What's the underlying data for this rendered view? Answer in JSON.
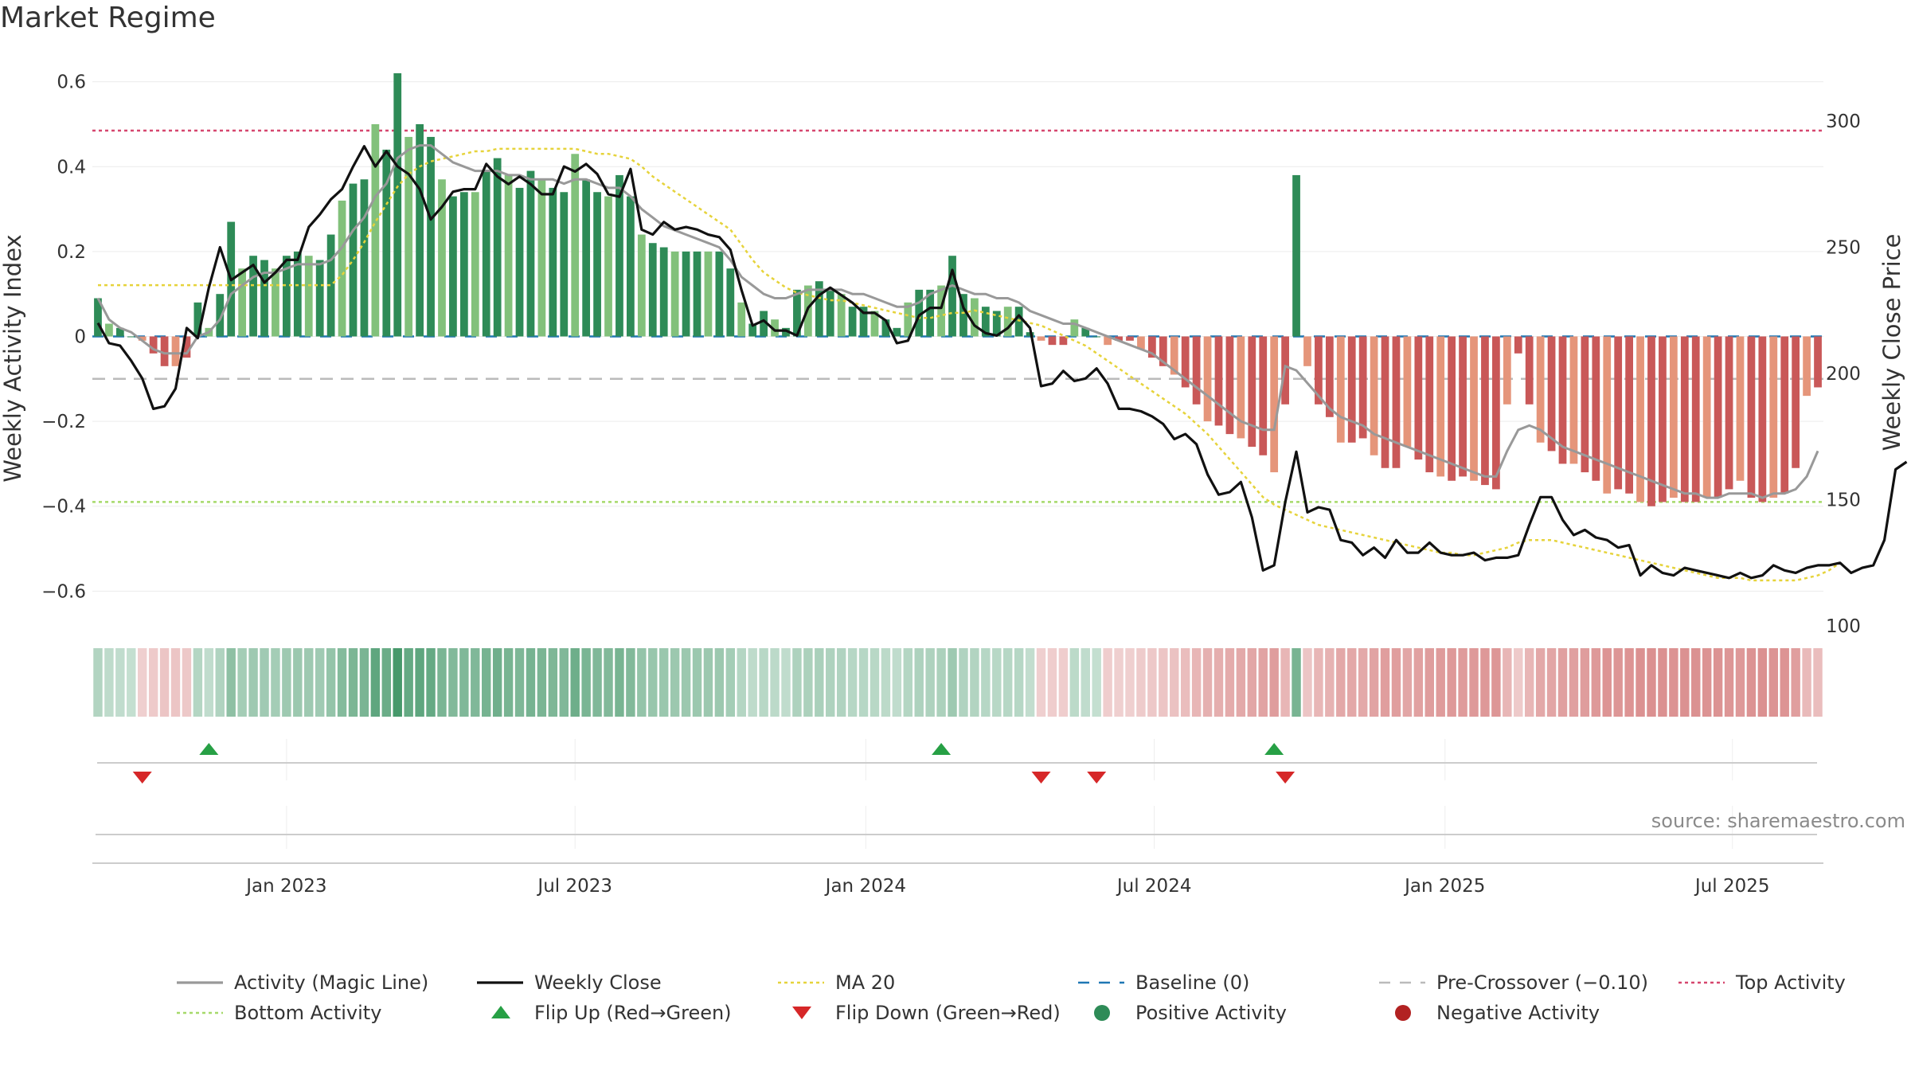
{
  "page": {
    "title": "Market Regime"
  },
  "source_text": "source: sharemaestro.com",
  "colors": {
    "strong_green": "#2e8b57",
    "light_green": "#82c17b",
    "strong_red": "#c95858",
    "light_red": "#e5957a",
    "close": "#111111",
    "magic": "#999999",
    "ma20": "#e6d33b",
    "baseline": "#1f77b4",
    "pre": "#bbbbbb",
    "top": "#d6466e",
    "bottom": "#a6d96a",
    "flip_up": "#27a045",
    "flip_down": "#d62728"
  },
  "chart_data": {
    "type": "bar",
    "title": "Market Regime",
    "ylabel": "Weekly Activity Index",
    "ylabel_right": "Weekly Close Price",
    "ylim": [
      -0.68,
      0.68
    ],
    "ylim_right": [
      100,
      300
    ],
    "yticks": [
      -0.6,
      -0.4,
      -0.2,
      0,
      0.2,
      0.4,
      0.6
    ],
    "ytick_labels": [
      "−0.6",
      "−0.4",
      "−0.2",
      "0",
      "0.2",
      "0.4",
      "0.6"
    ],
    "yticks_right": [
      100,
      150,
      200,
      250,
      300
    ],
    "xticks": [
      "Jan 2023",
      "Jul 2023",
      "Jan 2024",
      "Jul 2024",
      "Jan 2025",
      "Jul 2025"
    ],
    "xtick_weeks": [
      17.5,
      43.5,
      69.7,
      95.7,
      121.9,
      147.8
    ],
    "reference_lines": {
      "baseline": 0,
      "pre_crossover": -0.1,
      "top": 0.485,
      "bottom": -0.39
    },
    "activity_index": [
      0.09,
      0.03,
      0.02,
      0.0,
      -0.01,
      -0.04,
      -0.07,
      -0.07,
      -0.05,
      0.08,
      0.02,
      0.1,
      0.27,
      0.16,
      0.19,
      0.18,
      0.16,
      0.19,
      0.2,
      0.19,
      0.18,
      0.24,
      0.32,
      0.36,
      0.37,
      0.5,
      0.44,
      0.62,
      0.47,
      0.5,
      0.47,
      0.37,
      0.33,
      0.34,
      0.34,
      0.39,
      0.42,
      0.38,
      0.35,
      0.39,
      0.37,
      0.35,
      0.34,
      0.43,
      0.37,
      0.34,
      0.33,
      0.38,
      0.33,
      0.24,
      0.22,
      0.21,
      0.2,
      0.2,
      0.2,
      0.2,
      0.2,
      0.16,
      0.08,
      0.03,
      0.06,
      0.04,
      0.02,
      0.11,
      0.12,
      0.13,
      0.11,
      0.1,
      0.07,
      0.07,
      0.06,
      0.04,
      0.02,
      0.08,
      0.11,
      0.11,
      0.12,
      0.19,
      0.1,
      0.09,
      0.07,
      0.06,
      0.07,
      0.07,
      0.01,
      -0.01,
      -0.02,
      -0.02,
      0.04,
      0.02,
      0.0,
      -0.02,
      -0.01,
      -0.01,
      -0.03,
      -0.05,
      -0.07,
      -0.09,
      -0.12,
      -0.16,
      -0.2,
      -0.21,
      -0.23,
      -0.24,
      -0.26,
      -0.28,
      -0.32,
      -0.16,
      0.38,
      -0.07,
      -0.16,
      -0.19,
      -0.25,
      -0.25,
      -0.24,
      -0.28,
      -0.31,
      -0.31,
      -0.26,
      -0.29,
      -0.32,
      -0.33,
      -0.34,
      -0.33,
      -0.34,
      -0.35,
      -0.36,
      -0.16,
      -0.04,
      -0.16,
      -0.25,
      -0.27,
      -0.3,
      -0.3,
      -0.32,
      -0.34,
      -0.37,
      -0.36,
      -0.37,
      -0.39,
      -0.4,
      -0.39,
      -0.38,
      -0.39,
      -0.39,
      -0.38,
      -0.38,
      -0.36,
      -0.34,
      -0.38,
      -0.39,
      -0.38,
      -0.37,
      -0.31,
      -0.14,
      -0.12
    ],
    "series": [
      {
        "name": "Activity (Magic Line)",
        "values": [
          0.09,
          0.04,
          0.02,
          0.01,
          -0.01,
          -0.03,
          -0.04,
          -0.04,
          -0.04,
          0.0,
          0.01,
          0.04,
          0.1,
          0.12,
          0.14,
          0.15,
          0.15,
          0.16,
          0.17,
          0.17,
          0.17,
          0.18,
          0.21,
          0.25,
          0.28,
          0.33,
          0.36,
          0.42,
          0.44,
          0.45,
          0.45,
          0.43,
          0.41,
          0.4,
          0.39,
          0.39,
          0.39,
          0.38,
          0.38,
          0.37,
          0.37,
          0.37,
          0.36,
          0.37,
          0.37,
          0.36,
          0.35,
          0.35,
          0.33,
          0.3,
          0.28,
          0.26,
          0.25,
          0.24,
          0.23,
          0.22,
          0.21,
          0.18,
          0.14,
          0.12,
          0.1,
          0.09,
          0.09,
          0.1,
          0.11,
          0.11,
          0.11,
          0.11,
          0.1,
          0.1,
          0.09,
          0.08,
          0.07,
          0.07,
          0.08,
          0.1,
          0.11,
          0.12,
          0.11,
          0.1,
          0.1,
          0.09,
          0.09,
          0.08,
          0.06,
          0.05,
          0.04,
          0.03,
          0.03,
          0.02,
          0.01,
          0.0,
          -0.01,
          -0.02,
          -0.03,
          -0.04,
          -0.06,
          -0.08,
          -0.1,
          -0.12,
          -0.14,
          -0.16,
          -0.18,
          -0.2,
          -0.21,
          -0.22,
          -0.22,
          -0.07,
          -0.08,
          -0.11,
          -0.14,
          -0.17,
          -0.19,
          -0.2,
          -0.21,
          -0.23,
          -0.24,
          -0.25,
          -0.26,
          -0.27,
          -0.28,
          -0.29,
          -0.3,
          -0.31,
          -0.32,
          -0.33,
          -0.33,
          -0.27,
          -0.22,
          -0.21,
          -0.22,
          -0.24,
          -0.26,
          -0.27,
          -0.28,
          -0.29,
          -0.3,
          -0.31,
          -0.32,
          -0.33,
          -0.34,
          -0.35,
          -0.36,
          -0.37,
          -0.37,
          -0.38,
          -0.38,
          -0.37,
          -0.37,
          -0.37,
          -0.38,
          -0.37,
          -0.37,
          -0.36,
          -0.33,
          -0.27
        ]
      },
      {
        "name": "Weekly Close",
        "axis": "right",
        "values": [
          220,
          212,
          211,
          205,
          198,
          186,
          187,
          194,
          218,
          214,
          234,
          250,
          237,
          240,
          243,
          236,
          240,
          245,
          245,
          258,
          263,
          269,
          273,
          282,
          290,
          282,
          288,
          282,
          279,
          273,
          261,
          266,
          272,
          273,
          273,
          283,
          278,
          275,
          278,
          275,
          271,
          271,
          282,
          280,
          283,
          279,
          271,
          270,
          281,
          257,
          255,
          260,
          257,
          258,
          257,
          255,
          254,
          249,
          233,
          219,
          221,
          217,
          217,
          215,
          226,
          231,
          234,
          231,
          228,
          224,
          224,
          221,
          212,
          213,
          223,
          226,
          226,
          241,
          226,
          219,
          216,
          215,
          218,
          223,
          218,
          195,
          196,
          201,
          197,
          198,
          202,
          196,
          186,
          186,
          185,
          183,
          180,
          174,
          176,
          172,
          160,
          152,
          153,
          157,
          143,
          122,
          124,
          149,
          169,
          145,
          147,
          146,
          134,
          133,
          128,
          131,
          127,
          134,
          129,
          129,
          133,
          129,
          128,
          128,
          129,
          126,
          127,
          127,
          128,
          140,
          151,
          151,
          142,
          136,
          138,
          135,
          134,
          131,
          132,
          120,
          124,
          121,
          120,
          123,
          122,
          121,
          120,
          119,
          121,
          119,
          120,
          124,
          122,
          121,
          123,
          124,
          124,
          125,
          121,
          123,
          124,
          134,
          162,
          165
        ]
      },
      {
        "name": "MA 20",
        "axis": "right",
        "values": [
          235,
          235,
          235,
          235,
          235,
          235,
          235,
          235,
          235,
          235,
          235,
          235,
          235,
          235,
          235,
          235,
          235,
          235,
          235,
          235,
          235,
          235,
          239,
          245,
          252,
          260,
          267,
          274,
          279,
          282,
          284,
          285,
          286,
          287,
          288,
          288,
          289,
          289,
          289,
          289,
          289,
          289,
          289,
          289,
          288,
          287,
          287,
          286,
          285,
          282,
          278,
          275,
          272,
          269,
          266,
          263,
          260,
          257,
          251,
          245,
          240,
          237,
          234,
          232,
          231,
          230,
          229,
          229,
          228,
          227,
          226,
          225,
          224,
          223,
          222,
          222,
          223,
          224,
          224,
          225,
          224,
          223,
          222,
          221,
          220,
          219,
          217,
          215,
          213,
          211,
          208,
          205,
          202,
          199,
          196,
          193,
          190,
          187,
          184,
          180,
          176,
          171,
          166,
          161,
          156,
          151,
          148,
          146,
          144,
          142,
          140,
          139,
          138,
          137,
          136,
          135,
          134,
          133,
          132,
          131,
          130,
          129,
          129,
          128,
          128,
          129,
          130,
          131,
          133,
          134,
          134,
          134,
          133,
          132,
          131,
          130,
          129,
          128,
          127,
          126,
          125,
          124,
          123,
          122,
          121,
          120,
          119,
          119,
          119,
          118,
          118,
          118,
          118,
          118,
          119,
          120,
          122,
          125
        ]
      }
    ],
    "flip_up_weeks": [
      10,
      76,
      106
    ],
    "flip_down_weeks": [
      4,
      85,
      90,
      107
    ],
    "legend": {
      "placement": "bottom",
      "items": [
        {
          "label": "Activity (Magic Line)",
          "kind": "line",
          "color": "#999999"
        },
        {
          "label": "Weekly Close",
          "kind": "line",
          "color": "#111111"
        },
        {
          "label": "MA 20",
          "kind": "dotted",
          "color": "#e6d33b"
        },
        {
          "label": "Baseline (0)",
          "kind": "dashed",
          "color": "#1f77b4"
        },
        {
          "label": "Pre-Crossover (−0.10)",
          "kind": "dashed",
          "color": "#bbbbbb"
        },
        {
          "label": "Top Activity",
          "kind": "dotted",
          "color": "#d6466e"
        },
        {
          "label": "Bottom Activity",
          "kind": "dotted",
          "color": "#a6d96a"
        },
        {
          "label": "Flip Up (Red→Green)",
          "kind": "triangle-up",
          "color": "#27a045"
        },
        {
          "label": "Flip Down (Green→Red)",
          "kind": "triangle-down",
          "color": "#d62728"
        },
        {
          "label": "Positive Activity",
          "kind": "dot",
          "color": "#2e8b57"
        },
        {
          "label": "Negative Activity",
          "kind": "dot",
          "color": "#b22222"
        }
      ]
    }
  }
}
